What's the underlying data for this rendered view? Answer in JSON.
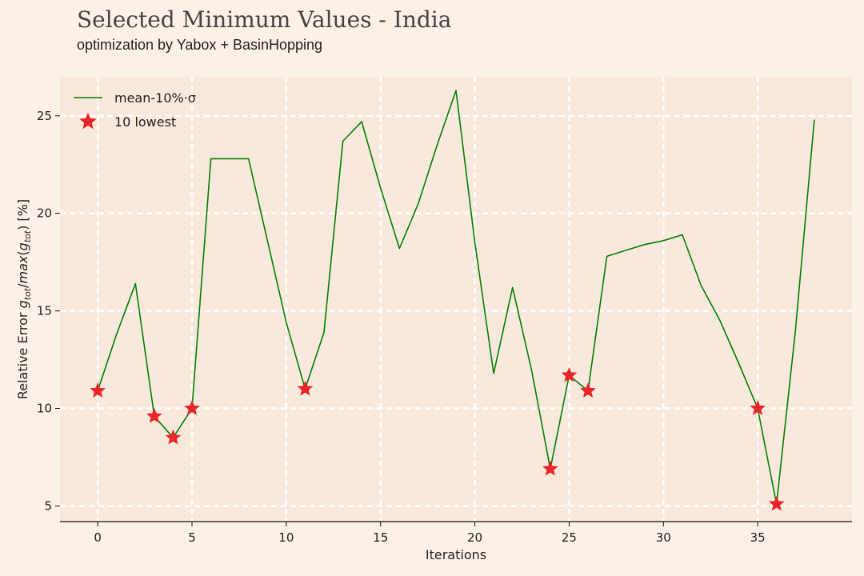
{
  "title": "Selected Minimum Values - India",
  "subtitle": "optimization by Yabox + BasinHopping",
  "chart_data": {
    "type": "line",
    "xlabel": "Iterations",
    "ylabel": "Relative Error g_tot/max(g_tot) [%]",
    "xlim": [
      -2,
      40
    ],
    "ylim": [
      4.2,
      27
    ],
    "xticks": [
      0,
      5,
      10,
      15,
      20,
      25,
      30,
      35
    ],
    "yticks": [
      5,
      10,
      15,
      20,
      25
    ],
    "grid": true,
    "legend_position": "top-left",
    "series": [
      {
        "name": "mean-10%·σ",
        "kind": "line",
        "color": "#008000",
        "x": [
          0,
          1,
          2,
          3,
          4,
          5,
          6,
          7,
          8,
          9,
          10,
          11,
          12,
          13,
          14,
          15,
          16,
          17,
          18,
          19,
          20,
          21,
          22,
          23,
          24,
          25,
          26,
          27,
          28,
          29,
          30,
          31,
          32,
          33,
          34,
          35,
          36,
          37,
          38
        ],
        "y": [
          10.9,
          13.8,
          16.4,
          9.6,
          8.5,
          10.0,
          22.8,
          22.8,
          22.8,
          18.6,
          14.4,
          11.0,
          13.9,
          23.7,
          24.7,
          21.3,
          18.2,
          20.5,
          23.5,
          26.3,
          18.5,
          11.8,
          16.2,
          12.0,
          6.9,
          11.7,
          10.9,
          17.8,
          18.1,
          18.4,
          18.6,
          18.9,
          16.3,
          14.5,
          12.3,
          10.0,
          5.1,
          14.0,
          24.8
        ]
      },
      {
        "name": "10 lowest",
        "kind": "scatter",
        "color": "#e8262a",
        "x": [
          0,
          3,
          4,
          5,
          11,
          24,
          25,
          26,
          35,
          36
        ],
        "y": [
          10.9,
          9.6,
          8.5,
          10.0,
          11.0,
          6.9,
          11.7,
          10.9,
          10.0,
          5.1
        ]
      }
    ]
  }
}
